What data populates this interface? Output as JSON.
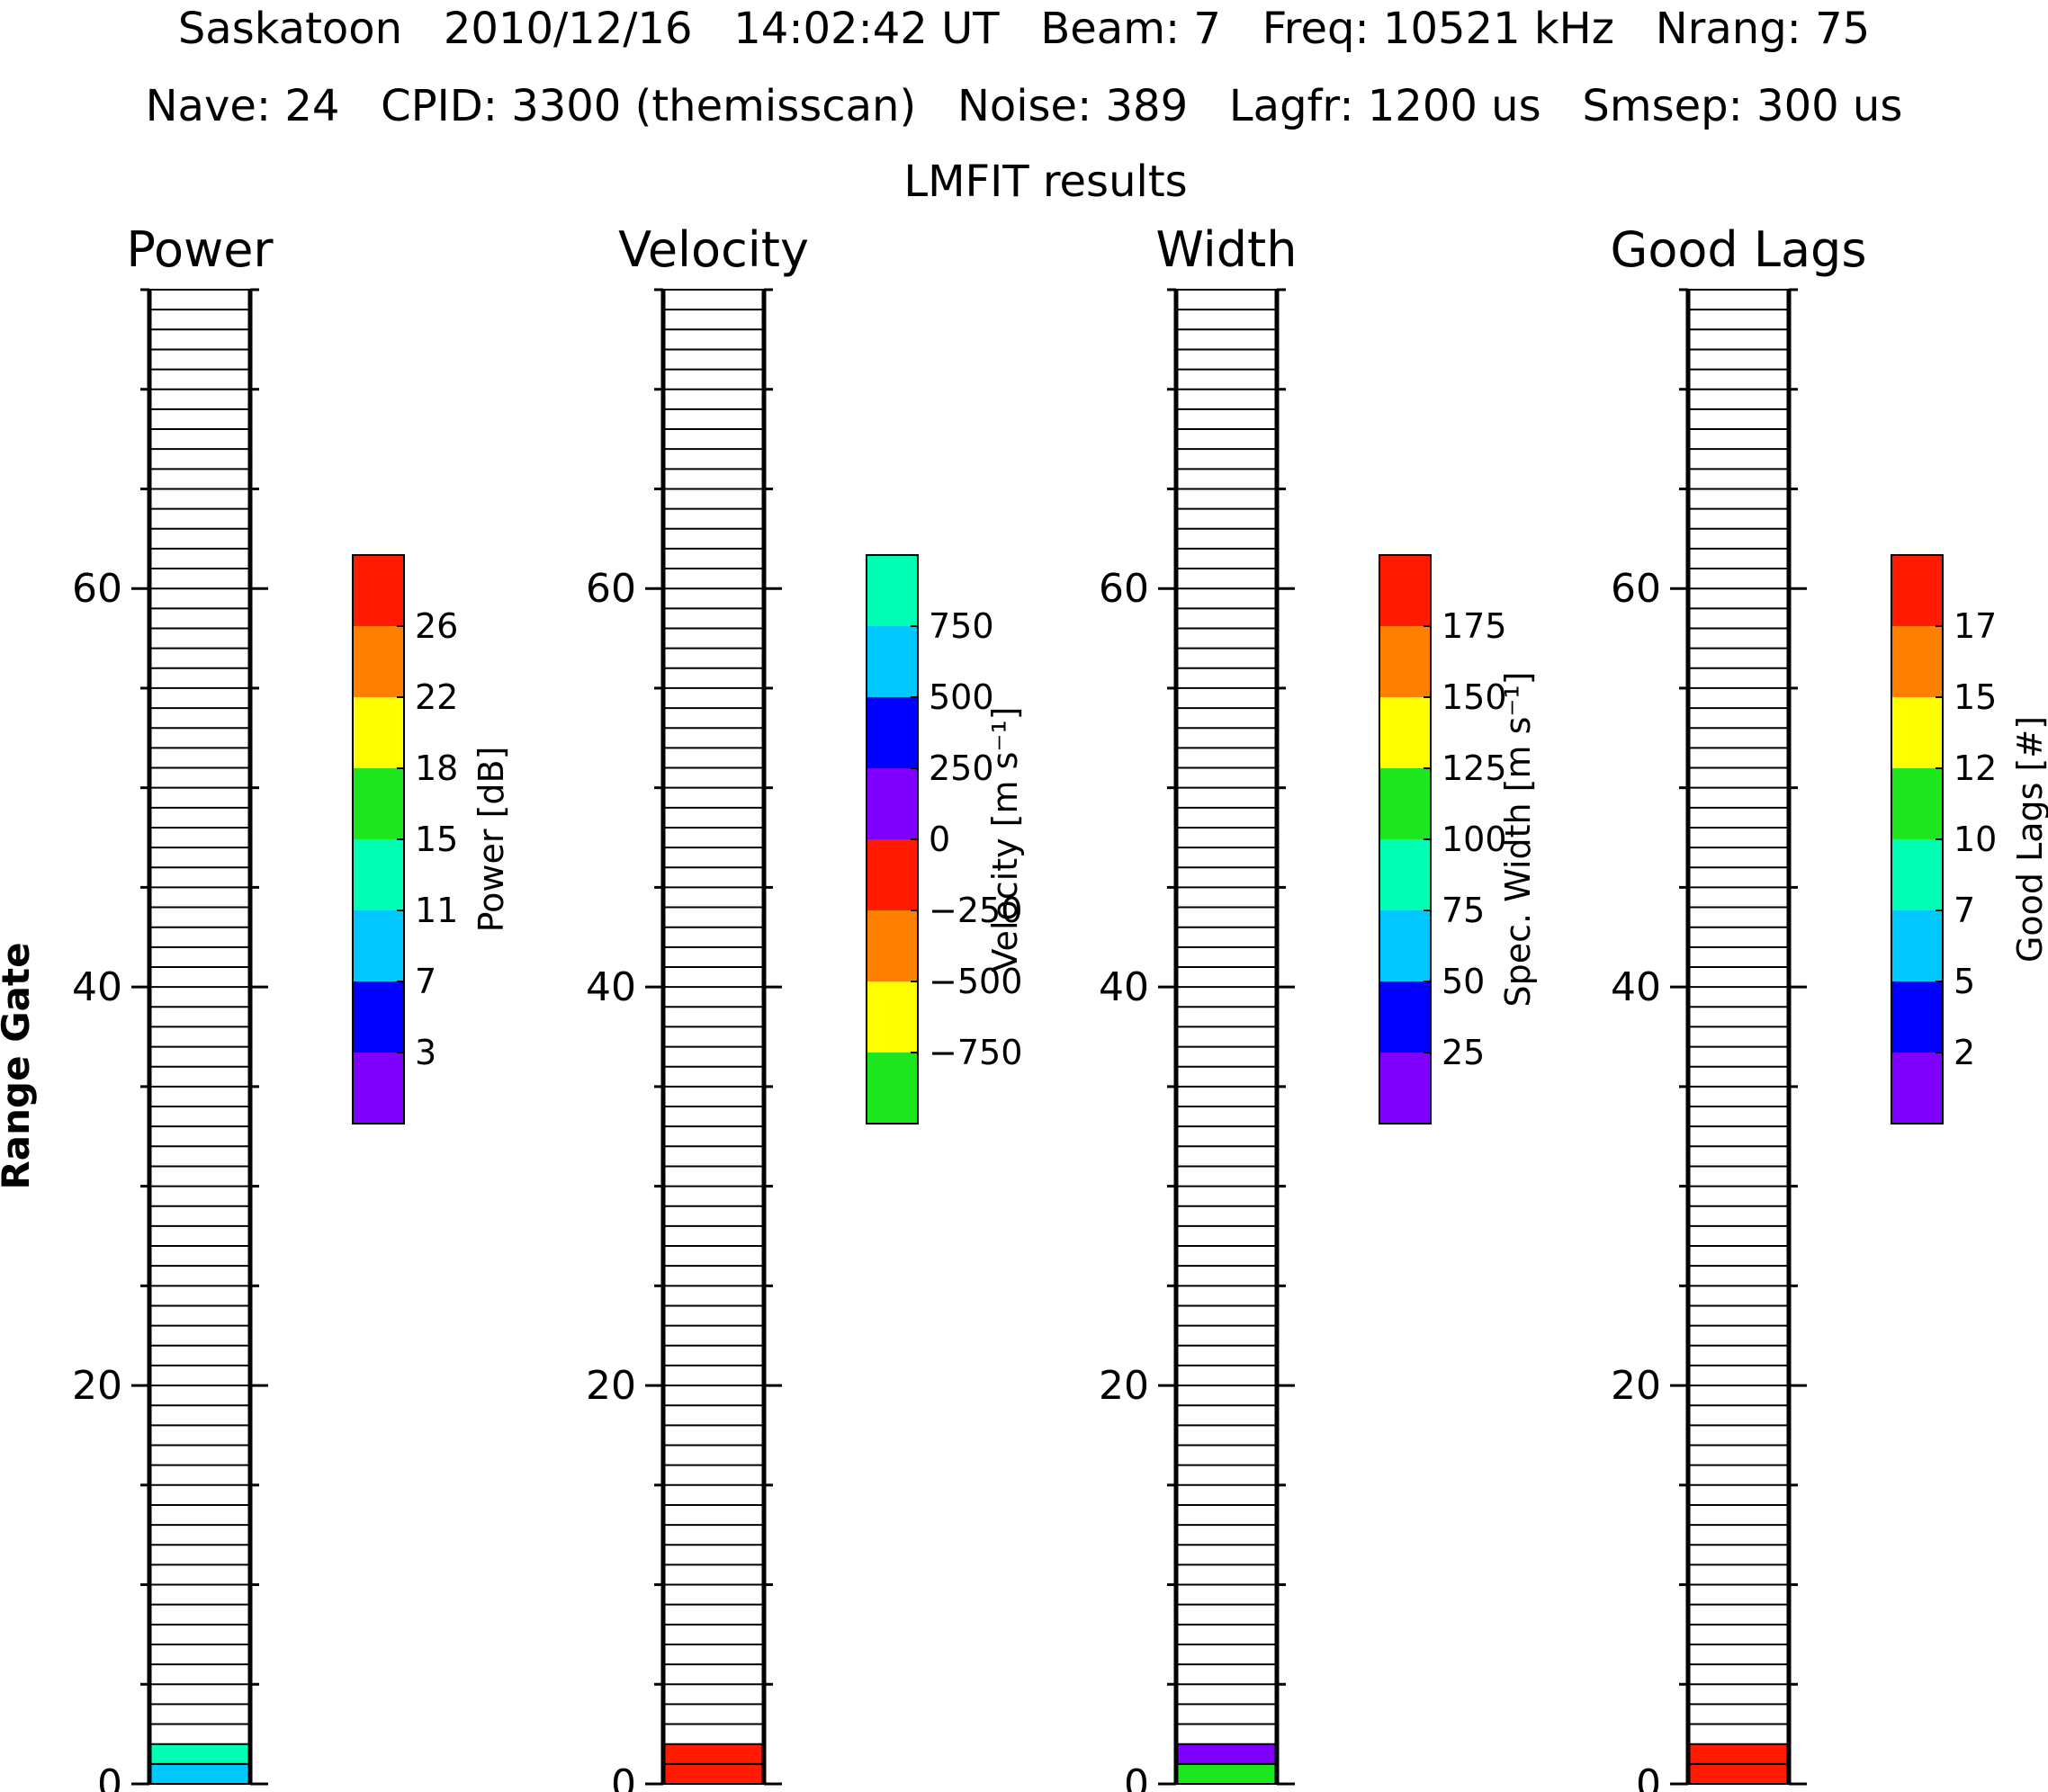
{
  "header": {
    "line1": "Saskatoon   2010/12/16   14:02:42 UT   Beam: 7   Freq: 10521 kHz   Nrang: 75",
    "line2": "Nave: 24   CPID: 3300 (themisscan)   Noise: 389   Lagfr: 1200 us   Smsep: 300 us",
    "line3": "LMFIT results"
  },
  "chart_data": {
    "type": "heatmap",
    "ylabel": "Range Gate",
    "ylim": [
      0,
      75
    ],
    "yticks": [
      0,
      20,
      40,
      60
    ],
    "panels": [
      {
        "title": "Power",
        "colorbar": {
          "label": "Power [dB]",
          "ticks": [
            "26",
            "22",
            "18",
            "15",
            "11",
            "7",
            "3"
          ],
          "colors": [
            "#ff1a00",
            "#ff8000",
            "#ffff00",
            "#1ee61e",
            "#00ffb4",
            "#00c8ff",
            "#0000ff",
            "#8000ff"
          ]
        },
        "gates": [
          {
            "gate": 0,
            "color": "#00c8ff"
          },
          {
            "gate": 1,
            "color": "#00ffb4"
          }
        ]
      },
      {
        "title": "Velocity",
        "colorbar": {
          "label": "Velocity [m s⁻¹]",
          "ticks": [
            "750",
            "500",
            "250",
            "0",
            "−250",
            "−500",
            "−750"
          ],
          "colors": [
            "#00ffb4",
            "#00c8ff",
            "#0000ff",
            "#8000ff",
            "#ff1a00",
            "#ff8000",
            "#ffff00",
            "#1ee61e"
          ]
        },
        "gates": [
          {
            "gate": 0,
            "color": "#ff1a00"
          },
          {
            "gate": 1,
            "color": "#ff1a00"
          }
        ]
      },
      {
        "title": "Width",
        "colorbar": {
          "label": "Spec. Width [m s⁻¹]",
          "ticks": [
            "175",
            "150",
            "125",
            "100",
            "75",
            "50",
            "25"
          ],
          "colors": [
            "#ff1a00",
            "#ff8000",
            "#ffff00",
            "#1ee61e",
            "#00ffb4",
            "#00c8ff",
            "#0000ff",
            "#8000ff"
          ]
        },
        "gates": [
          {
            "gate": 0,
            "color": "#1ee61e"
          },
          {
            "gate": 1,
            "color": "#8000ff"
          }
        ]
      },
      {
        "title": "Good Lags",
        "colorbar": {
          "label": "Good Lags [#]",
          "ticks": [
            "17",
            "15",
            "12",
            "10",
            "7",
            "5",
            "2"
          ],
          "colors": [
            "#ff1a00",
            "#ff8000",
            "#ffff00",
            "#1ee61e",
            "#00ffb4",
            "#00c8ff",
            "#0000ff",
            "#8000ff"
          ]
        },
        "gates": [
          {
            "gate": 0,
            "color": "#ff1a00"
          },
          {
            "gate": 1,
            "color": "#ff1a00"
          }
        ]
      }
    ]
  }
}
